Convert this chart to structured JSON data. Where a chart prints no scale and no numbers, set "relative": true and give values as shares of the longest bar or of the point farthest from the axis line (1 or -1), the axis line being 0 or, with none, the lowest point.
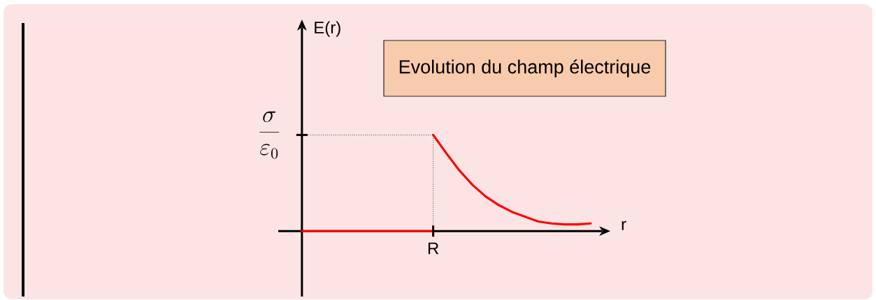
{
  "chart_data": {
    "type": "line",
    "relative": true,
    "title": "Evolution du champ électrique",
    "xlabel": "r",
    "categories": [
      null,
      null,
      null,
      null,
      null,
      null,
      null,
      null,
      null,
      null,
      null,
      null,
      null,
      null,
      null,
      null,
      null,
      null,
      null,
      null,
      null,
      null,
      null
    ],
    "series": [
      {
        "color": "#ff0000",
        "values": [
          0,
          0,
          0,
          0,
          0,
          0,
          0,
          0,
          0,
          0,
          0,
          null,
          null,
          null,
          null,
          null,
          null,
          null,
          null,
          null,
          null,
          null,
          null
        ]
      },
      {
        "color": "#ff0000",
        "values": [
          null,
          null,
          null,
          null,
          null,
          null,
          null,
          null,
          null,
          null,
          1,
          0.81,
          0.63,
          0.48,
          0.36,
          0.27,
          0.2,
          0.15,
          0.1,
          0.08,
          0.07,
          0.07,
          0.08
        ]
      }
    ],
    "annotations": [
      {
        "text": "R",
        "y": 0
      },
      "E(r)",
      "\\frac{\\sigma}{\\varepsilon_0}"
    ],
    "ref_lines": [
      {
        "axis": "y",
        "value": 1,
        "line_style": "dotted",
        "color": "#404040"
      }
    ]
  }
}
